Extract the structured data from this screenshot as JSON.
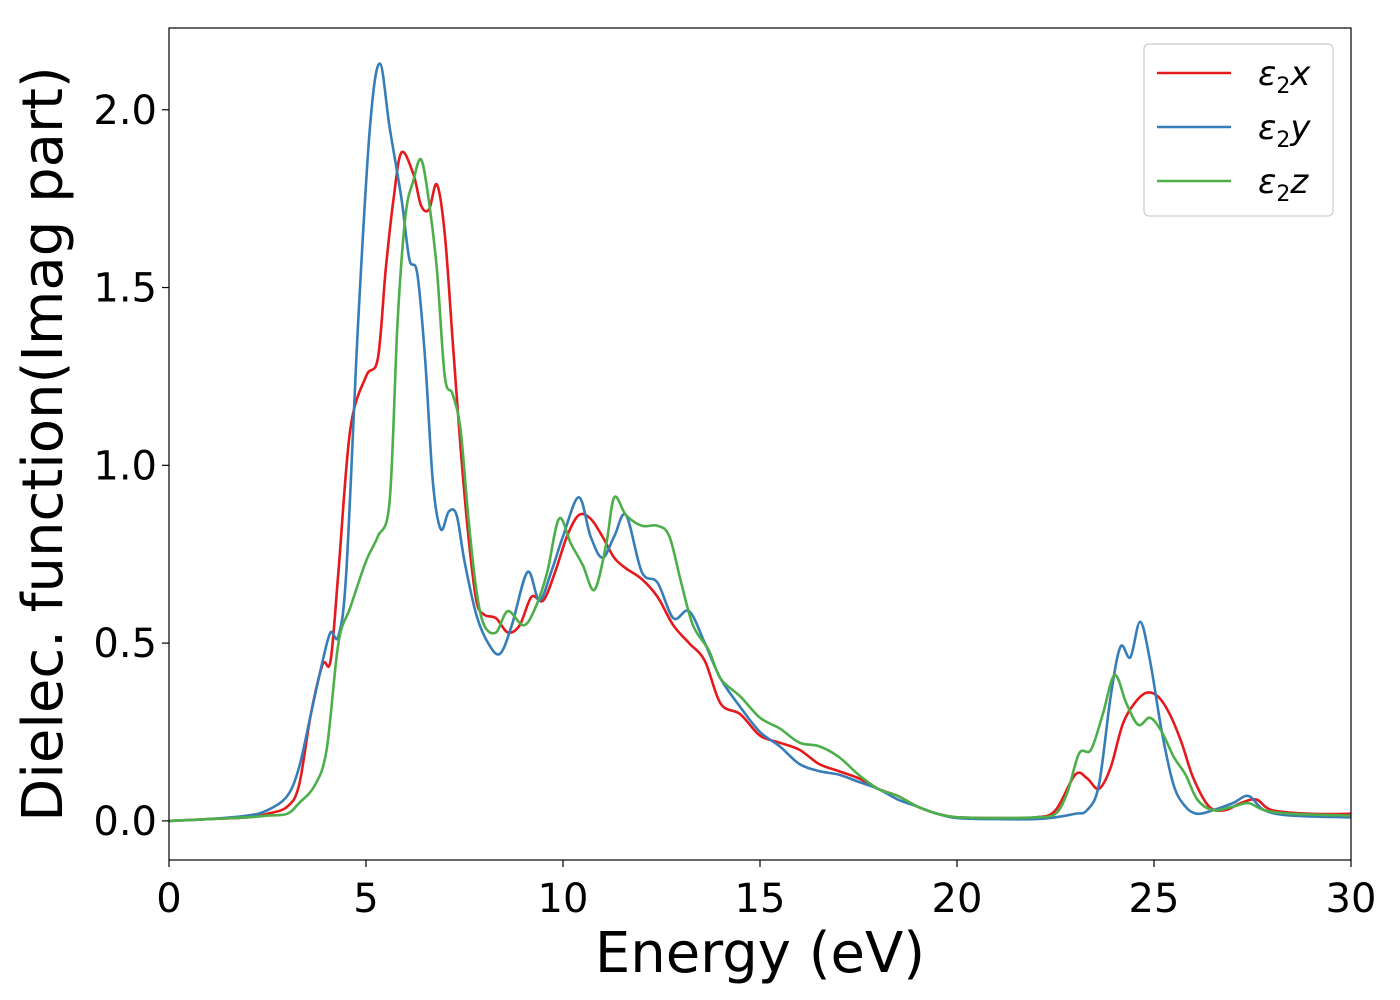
{
  "chart_data": {
    "type": "line",
    "title": "",
    "xlabel": "Energy (eV)",
    "ylabel": "Dielec. function(Imag part)",
    "xlim": [
      0,
      30
    ],
    "ylim": [
      -0.11,
      2.23
    ],
    "xticks": [
      0,
      5,
      10,
      15,
      20,
      25,
      30
    ],
    "xtick_labels": [
      "0",
      "5",
      "10",
      "15",
      "20",
      "25",
      "30"
    ],
    "yticks": [
      0.0,
      0.5,
      1.0,
      1.5,
      2.0
    ],
    "ytick_labels": [
      "0.0",
      "0.5",
      "1.0",
      "1.5",
      "2.0"
    ],
    "grid": false,
    "legend_position": "top-right",
    "series": [
      {
        "name": "ε2x",
        "legend": {
          "symbol": "ε",
          "sub": "2",
          "axis": "x"
        },
        "color": "#e41a1c",
        "x": [
          0,
          1,
          2,
          2.5,
          3,
          3.3,
          3.6,
          3.9,
          4.1,
          4.3,
          4.6,
          5.0,
          5.3,
          5.5,
          5.7,
          5.9,
          6.2,
          6.4,
          6.6,
          6.8,
          7.0,
          7.2,
          7.4,
          7.6,
          7.8,
          8.0,
          8.3,
          8.6,
          8.9,
          9.2,
          9.5,
          9.8,
          10.1,
          10.4,
          10.7,
          11.0,
          11.3,
          11.6,
          12.0,
          12.4,
          12.8,
          13.2,
          13.6,
          14.0,
          14.5,
          15.0,
          15.5,
          16.0,
          16.5,
          17.0,
          17.5,
          18.0,
          18.5,
          19.0,
          19.5,
          20.0,
          21.0,
          22.0,
          22.5,
          23.0,
          23.3,
          23.6,
          23.9,
          24.2,
          24.5,
          24.8,
          25.1,
          25.4,
          25.7,
          26.0,
          26.4,
          26.8,
          27.2,
          27.6,
          28.0,
          29.0,
          30.0
        ],
        "y": [
          0.0,
          0.005,
          0.01,
          0.02,
          0.04,
          0.1,
          0.3,
          0.44,
          0.45,
          0.7,
          1.1,
          1.25,
          1.3,
          1.55,
          1.75,
          1.88,
          1.82,
          1.73,
          1.72,
          1.79,
          1.65,
          1.35,
          1.05,
          0.8,
          0.62,
          0.58,
          0.57,
          0.53,
          0.55,
          0.63,
          0.62,
          0.7,
          0.8,
          0.86,
          0.85,
          0.8,
          0.74,
          0.71,
          0.68,
          0.63,
          0.55,
          0.5,
          0.45,
          0.33,
          0.3,
          0.24,
          0.22,
          0.2,
          0.16,
          0.14,
          0.12,
          0.09,
          0.07,
          0.04,
          0.02,
          0.01,
          0.008,
          0.01,
          0.03,
          0.13,
          0.12,
          0.09,
          0.15,
          0.27,
          0.33,
          0.36,
          0.35,
          0.3,
          0.22,
          0.12,
          0.04,
          0.03,
          0.05,
          0.06,
          0.03,
          0.02,
          0.02
        ]
      },
      {
        "name": "ε2y",
        "legend": {
          "symbol": "ε",
          "sub": "2",
          "axis": "y"
        },
        "color": "#377eb8",
        "x": [
          0,
          1,
          2,
          2.5,
          3,
          3.3,
          3.6,
          3.9,
          4.1,
          4.3,
          4.5,
          4.8,
          5.1,
          5.35,
          5.6,
          5.9,
          6.1,
          6.3,
          6.5,
          6.7,
          6.9,
          7.1,
          7.3,
          7.5,
          7.8,
          8.1,
          8.4,
          8.7,
          9.1,
          9.4,
          9.7,
          10.0,
          10.4,
          10.7,
          11.0,
          11.3,
          11.6,
          12.0,
          12.4,
          12.8,
          13.2,
          13.6,
          14.0,
          14.5,
          15.0,
          15.5,
          16.0,
          16.5,
          17.0,
          17.5,
          18.0,
          18.5,
          19.0,
          19.5,
          20.0,
          21.0,
          22.0,
          22.5,
          23.0,
          23.3,
          23.6,
          23.9,
          24.15,
          24.4,
          24.65,
          24.9,
          25.2,
          25.5,
          25.8,
          26.1,
          26.5,
          27.0,
          27.4,
          27.8,
          28.5,
          30.0
        ],
        "y": [
          0.0,
          0.005,
          0.015,
          0.03,
          0.07,
          0.15,
          0.3,
          0.45,
          0.53,
          0.52,
          0.7,
          1.4,
          1.95,
          2.13,
          1.95,
          1.75,
          1.58,
          1.54,
          1.3,
          0.95,
          0.82,
          0.87,
          0.86,
          0.73,
          0.58,
          0.5,
          0.47,
          0.55,
          0.7,
          0.62,
          0.7,
          0.8,
          0.91,
          0.8,
          0.74,
          0.8,
          0.86,
          0.7,
          0.67,
          0.57,
          0.59,
          0.5,
          0.4,
          0.32,
          0.25,
          0.21,
          0.16,
          0.14,
          0.13,
          0.11,
          0.09,
          0.06,
          0.04,
          0.02,
          0.008,
          0.005,
          0.005,
          0.01,
          0.02,
          0.03,
          0.1,
          0.35,
          0.49,
          0.46,
          0.56,
          0.45,
          0.25,
          0.1,
          0.04,
          0.02,
          0.03,
          0.05,
          0.07,
          0.03,
          0.015,
          0.01
        ]
      },
      {
        "name": "ε2z",
        "legend": {
          "symbol": "ε",
          "sub": "2",
          "axis": "z"
        },
        "color": "#4daf4a",
        "x": [
          0,
          1,
          2,
          2.5,
          3,
          3.3,
          3.7,
          4.0,
          4.3,
          4.6,
          5.0,
          5.3,
          5.6,
          5.8,
          6.0,
          6.2,
          6.4,
          6.6,
          6.8,
          7.0,
          7.2,
          7.4,
          7.6,
          7.8,
          8.0,
          8.3,
          8.6,
          9.0,
          9.3,
          9.6,
          9.9,
          10.2,
          10.5,
          10.8,
          11.1,
          11.3,
          11.6,
          12.0,
          12.4,
          12.7,
          13.0,
          13.3,
          13.7,
          14.0,
          14.5,
          15.0,
          15.5,
          16.0,
          16.5,
          17.0,
          17.5,
          18.0,
          18.5,
          19.0,
          19.5,
          20.0,
          21.0,
          22.0,
          22.5,
          22.8,
          23.1,
          23.4,
          23.7,
          24.0,
          24.3,
          24.6,
          24.9,
          25.2,
          25.5,
          25.8,
          26.1,
          26.5,
          27.0,
          27.4,
          27.8,
          28.5,
          30.0
        ],
        "y": [
          0.0,
          0.005,
          0.01,
          0.015,
          0.02,
          0.05,
          0.1,
          0.2,
          0.5,
          0.6,
          0.73,
          0.8,
          0.9,
          1.4,
          1.7,
          1.8,
          1.86,
          1.74,
          1.55,
          1.25,
          1.2,
          1.1,
          0.85,
          0.65,
          0.55,
          0.53,
          0.59,
          0.55,
          0.6,
          0.7,
          0.85,
          0.78,
          0.72,
          0.65,
          0.78,
          0.91,
          0.86,
          0.83,
          0.83,
          0.8,
          0.67,
          0.55,
          0.48,
          0.4,
          0.35,
          0.29,
          0.26,
          0.22,
          0.21,
          0.18,
          0.13,
          0.09,
          0.07,
          0.04,
          0.02,
          0.01,
          0.008,
          0.01,
          0.02,
          0.08,
          0.19,
          0.2,
          0.3,
          0.41,
          0.33,
          0.27,
          0.29,
          0.25,
          0.18,
          0.13,
          0.06,
          0.03,
          0.04,
          0.05,
          0.03,
          0.02,
          0.015
        ]
      }
    ]
  }
}
